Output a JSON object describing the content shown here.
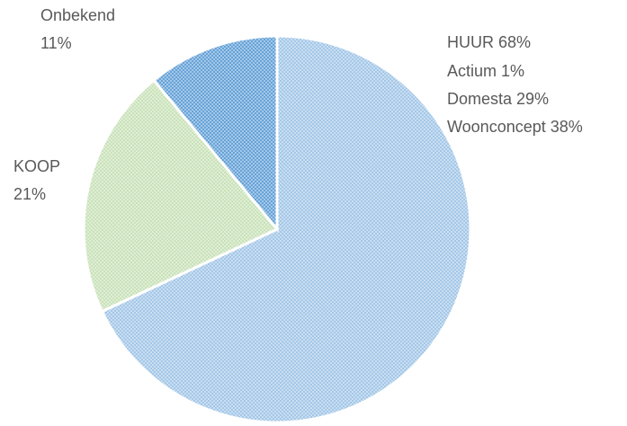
{
  "chart_data": {
    "type": "pie",
    "categories": [
      "HUUR",
      "KOOP",
      "Onbekend"
    ],
    "values": [
      68,
      21,
      11
    ],
    "value_labels": [
      "68%",
      "21%",
      "11%"
    ],
    "colors": [
      "#9dc3e6",
      "#c5e0b4",
      "#5b9bd5"
    ],
    "breakdown": {
      "names": [
        "Actium",
        "Domesta",
        "Woonconcept"
      ],
      "values": [
        1,
        29,
        38
      ],
      "value_labels": [
        "1%",
        "29%",
        "38%"
      ]
    }
  }
}
